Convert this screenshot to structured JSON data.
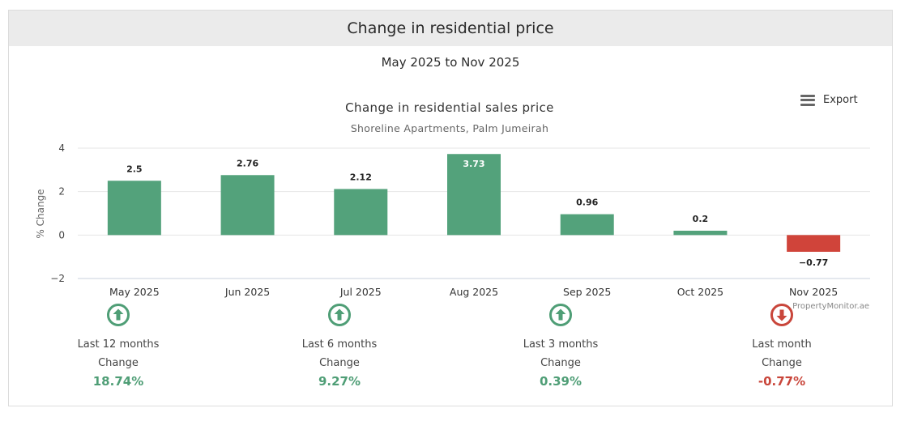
{
  "header": {
    "title": "Change in residential price"
  },
  "period": "May 2025 to Nov 2025",
  "export": {
    "label": "Export",
    "icon": "menu-icon"
  },
  "chart_data": {
    "type": "bar",
    "title": "Change in residential sales price",
    "subtitle": "Shoreline Apartments, Palm Jumeirah",
    "ylabel": "% Change",
    "xlabel": "",
    "ylim": [
      -2,
      4
    ],
    "yticks": [
      4,
      2,
      0,
      -2
    ],
    "ytick_labels": [
      "4",
      "2",
      "0",
      "−2"
    ],
    "categories": [
      "May 2025",
      "Jun 2025",
      "Jul 2025",
      "Aug 2025",
      "Sep 2025",
      "Oct 2025",
      "Nov 2025"
    ],
    "values": [
      2.5,
      2.76,
      2.12,
      3.73,
      0.96,
      0.2,
      -0.77
    ],
    "data_labels": [
      "2.5",
      "2.76",
      "2.12",
      "3.73",
      "0.96",
      "0.2",
      "−0.77"
    ],
    "positive_color": "#53a27b",
    "negative_color": "#d0443a",
    "credit": "PropertyMonitor.ae"
  },
  "stats": [
    {
      "label": "Last 12 months",
      "sub": "Change",
      "value": "18.74%",
      "direction": "up",
      "icon": "arrow-up-circle-icon",
      "color": "#4f9e76"
    },
    {
      "label": "Last 6 months",
      "sub": "Change",
      "value": "9.27%",
      "direction": "up",
      "icon": "arrow-up-circle-icon",
      "color": "#4f9e76"
    },
    {
      "label": "Last 3 months",
      "sub": "Change",
      "value": "0.39%",
      "direction": "up",
      "icon": "arrow-up-circle-icon",
      "color": "#4f9e76"
    },
    {
      "label": "Last month",
      "sub": "Change",
      "value": "-0.77%",
      "direction": "down",
      "icon": "arrow-down-circle-icon",
      "color": "#c9463b"
    }
  ]
}
